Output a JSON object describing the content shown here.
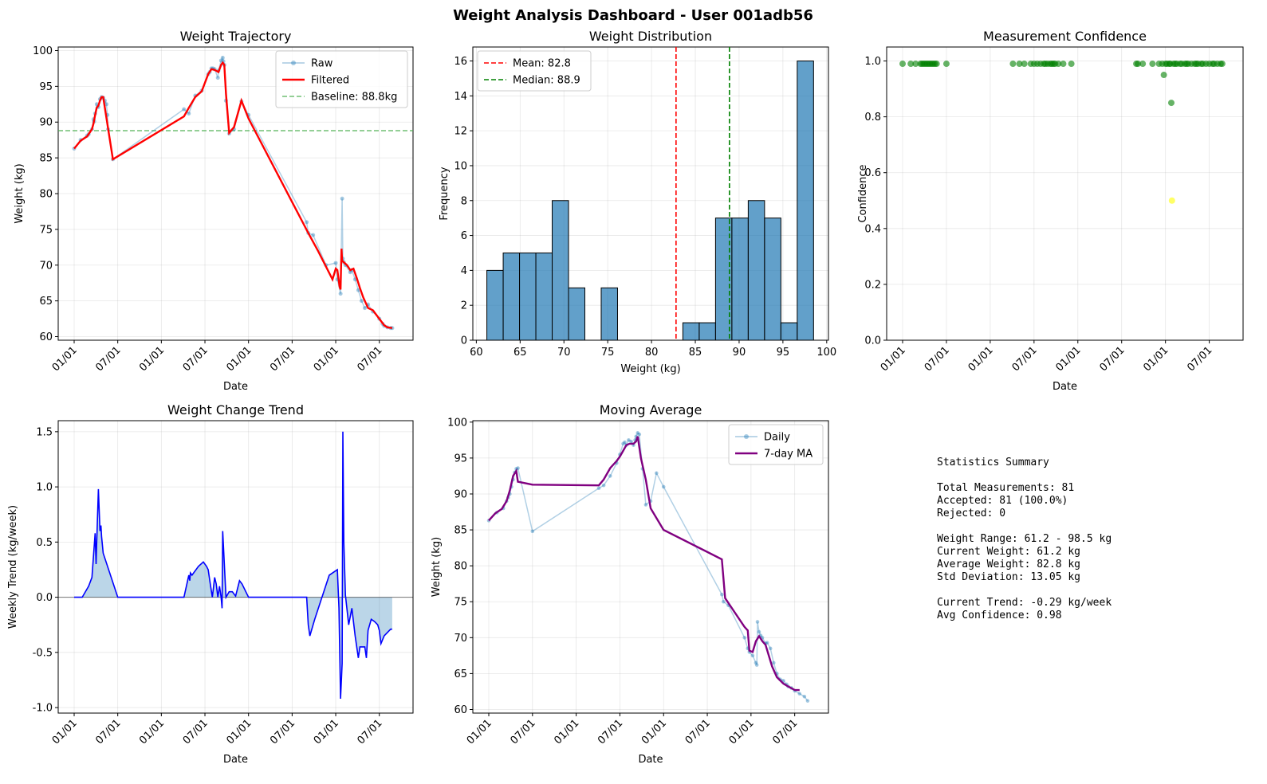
{
  "suptitle": "Weight Analysis Dashboard - User 001adb56",
  "colors": {
    "raw": "#1f77b4",
    "filtered": "#ff0000",
    "baseline": "#4caf50",
    "hist": "#1f77b4",
    "mean": "#ff0000",
    "median": "#008000",
    "conf_green": "#008000",
    "conf_yellow": "#ffff00",
    "trend": "#0000ff",
    "ma": "#800080"
  },
  "date_ticks": [
    "01/01",
    "07/01",
    "01/01",
    "07/01",
    "01/01",
    "07/01",
    "01/01",
    "07/01"
  ],
  "chart_data": [
    {
      "type": "line",
      "id": "trajectory",
      "title": "Weight Trajectory",
      "xlabel": "Date",
      "ylabel": "Weight (kg)",
      "xlim": [
        0,
        1000
      ],
      "ylim": [
        59.5,
        100.5
      ],
      "yticks": [
        60,
        65,
        70,
        75,
        80,
        85,
        90,
        95,
        100
      ],
      "legend": [
        "Raw",
        "Filtered",
        "Baseline: 88.8kg"
      ],
      "baseline": 88.8,
      "series": [
        {
          "name": "Raw",
          "x": [
            0,
            20,
            40,
            45,
            55,
            60,
            62,
            65,
            70,
            75,
            80,
            85,
            90,
            95,
            100,
            103,
            105,
            120,
            340,
            355,
            375,
            395,
            415,
            420,
            425,
            430,
            435,
            445,
            447,
            455,
            460,
            462,
            465,
            470,
            480,
            495,
            518,
            540,
            720,
            725,
            740,
            780,
            810,
            815,
            825,
            830,
            832,
            835,
            840,
            855,
            860,
            870,
            880,
            890,
            900,
            910,
            925,
            945,
            955,
            960,
            970,
            980,
            985
          ],
          "y": [
            86.3,
            87.5,
            88.1,
            88.3,
            89,
            90.4,
            90.1,
            91.2,
            92.5,
            92.1,
            93.2,
            93.5,
            93.4,
            93.0,
            92.5,
            91.0,
            89.0,
            84.8,
            91.8,
            91.2,
            93.7,
            94.4,
            96.7,
            97.0,
            97.5,
            97.5,
            97.4,
            96.2,
            97.2,
            98.6,
            99.0,
            98.5,
            98.0,
            93.0,
            88.4,
            89.0,
            92.9,
            91.0,
            76.0,
            74.5,
            74.2,
            70.0,
            70.3,
            68.0,
            66.0,
            79.3,
            70.9,
            70.4,
            70.0,
            69.0,
            69.3,
            68.0,
            66.5,
            65.0,
            64.0,
            64.5,
            63.5,
            62.5,
            61.8,
            61.5,
            61.3,
            61.2,
            61.2
          ]
        },
        {
          "name": "Filtered",
          "x": [
            0,
            20,
            40,
            55,
            60,
            65,
            70,
            75,
            80,
            85,
            90,
            120,
            340,
            355,
            375,
            395,
            415,
            425,
            435,
            447,
            455,
            460,
            465,
            470,
            480,
            495,
            518,
            540,
            725,
            755,
            800,
            810,
            815,
            822,
            825,
            828,
            830,
            835,
            845,
            855,
            865,
            875,
            885,
            895,
            910,
            925,
            945,
            960,
            970,
            985
          ],
          "y": [
            86.3,
            87.4,
            88.0,
            89.0,
            89.8,
            91.0,
            92.0,
            92.3,
            93.0,
            93.5,
            93.5,
            84.8,
            90.8,
            92.0,
            93.5,
            94.3,
            96.7,
            97.4,
            97.3,
            97.0,
            98.0,
            98.3,
            98.0,
            94.0,
            88.5,
            89.3,
            93.0,
            90.5,
            74.5,
            72.0,
            68.0,
            69.5,
            69.3,
            67.0,
            66.6,
            72.3,
            70.6,
            70.4,
            70.0,
            69.3,
            69.5,
            68.2,
            66.8,
            65.5,
            64.0,
            63.7,
            62.5,
            61.6,
            61.3,
            61.2
          ]
        }
      ]
    },
    {
      "type": "bar",
      "id": "distribution",
      "title": "Weight Distribution",
      "xlabel": "Weight (kg)",
      "ylabel": "Frequency",
      "xlim": [
        59.6,
        100.2
      ],
      "ylim": [
        0,
        16.8
      ],
      "xticks": [
        60,
        65,
        70,
        75,
        80,
        85,
        90,
        95,
        100
      ],
      "yticks": [
        0,
        2,
        4,
        6,
        8,
        10,
        12,
        14,
        16
      ],
      "legend": [
        "Mean: 82.8",
        "Median: 88.9"
      ],
      "mean": 82.8,
      "median": 88.9,
      "bin_start": 61.2,
      "bin_width": 1.865,
      "values": [
        4,
        5,
        5,
        5,
        8,
        3,
        0,
        3,
        0,
        0,
        0,
        0,
        1,
        1,
        7,
        7,
        8,
        7,
        1,
        16
      ]
    },
    {
      "type": "scatter",
      "id": "confidence",
      "title": "Measurement Confidence",
      "xlabel": "Date",
      "ylabel": "Confidence",
      "xlim": [
        0,
        1000
      ],
      "ylim": [
        0,
        1.05
      ],
      "yticks": [
        0.0,
        0.2,
        0.4,
        0.6,
        0.8,
        1.0
      ],
      "x": [
        0,
        25,
        40,
        55,
        60,
        65,
        70,
        75,
        80,
        85,
        90,
        95,
        100,
        105,
        135,
        340,
        360,
        375,
        395,
        405,
        415,
        425,
        435,
        440,
        447,
        455,
        460,
        465,
        470,
        480,
        495,
        520,
        720,
        725,
        740,
        770,
        790,
        800,
        805,
        810,
        815,
        822,
        825,
        828,
        830,
        835,
        840,
        845,
        855,
        860,
        870,
        875,
        880,
        890,
        900,
        905,
        910,
        920,
        925,
        935,
        945,
        955,
        960,
        970,
        980,
        985
      ],
      "y": [
        0.99,
        0.99,
        0.99,
        0.99,
        0.99,
        0.99,
        0.99,
        0.99,
        0.99,
        0.99,
        0.99,
        0.99,
        0.99,
        0.99,
        0.99,
        0.99,
        0.99,
        0.99,
        0.99,
        0.99,
        0.99,
        0.99,
        0.99,
        0.99,
        0.99,
        0.99,
        0.99,
        0.99,
        0.99,
        0.99,
        0.99,
        0.99,
        0.99,
        0.99,
        0.99,
        0.99,
        0.99,
        0.99,
        0.95,
        0.99,
        0.99,
        0.99,
        0.99,
        0.85,
        0.5,
        0.99,
        0.99,
        0.99,
        0.99,
        0.99,
        0.99,
        0.99,
        0.99,
        0.99,
        0.99,
        0.99,
        0.99,
        0.99,
        0.99,
        0.99,
        0.99,
        0.99,
        0.99,
        0.99,
        0.99,
        0.99
      ]
    },
    {
      "type": "area",
      "id": "trend",
      "title": "Weight Change Trend",
      "xlabel": "Date",
      "ylabel": "Weekly Trend (kg/week)",
      "xlim": [
        0,
        1000
      ],
      "ylim": [
        -1.05,
        1.6
      ],
      "yticks": [
        -1.0,
        -0.5,
        0.0,
        0.5,
        1.0,
        1.5
      ],
      "x": [
        0,
        25,
        45,
        55,
        65,
        68,
        70,
        75,
        78,
        80,
        83,
        85,
        90,
        135,
        340,
        355,
        358,
        360,
        365,
        385,
        400,
        410,
        415,
        420,
        428,
        435,
        440,
        445,
        450,
        455,
        458,
        460,
        470,
        480,
        490,
        500,
        512,
        520,
        540,
        560,
        720,
        725,
        730,
        745,
        790,
        815,
        820,
        825,
        830,
        832,
        835,
        840,
        850,
        860,
        870,
        880,
        885,
        890,
        900,
        905,
        910,
        920,
        930,
        940,
        945,
        950,
        960,
        970,
        980,
        985
      ],
      "y": [
        0,
        0,
        0.1,
        0.18,
        0.58,
        0.3,
        0.5,
        0.98,
        0.75,
        0.6,
        0.65,
        0.55,
        0.4,
        0,
        0,
        0.2,
        0.15,
        0.22,
        0.2,
        0.28,
        0.32,
        0.28,
        0.25,
        0.15,
        0,
        0.18,
        0.12,
        0,
        0.1,
        0,
        -0.1,
        0.6,
        0,
        0.05,
        0.05,
        0.01,
        0.15,
        0.12,
        0,
        0,
        0,
        -0.25,
        -0.35,
        -0.2,
        0.2,
        0.25,
        -0.1,
        -0.92,
        -0.6,
        1.5,
        0.5,
        0.02,
        -0.25,
        -0.1,
        -0.35,
        -0.55,
        -0.45,
        -0.45,
        -0.45,
        -0.55,
        -0.3,
        -0.2,
        -0.22,
        -0.25,
        -0.3,
        -0.42,
        -0.35,
        -0.32,
        -0.29,
        -0.29
      ]
    },
    {
      "type": "line",
      "id": "moving_average",
      "title": "Moving Average",
      "xlabel": "Date",
      "ylabel": "Weight (kg)",
      "xlim": [
        0,
        1000
      ],
      "ylim": [
        59.5,
        100.2
      ],
      "yticks": [
        60,
        65,
        70,
        75,
        80,
        85,
        90,
        95,
        100
      ],
      "legend": [
        "Daily",
        "7-day MA"
      ],
      "series": [
        {
          "name": "Daily",
          "x": [
            0,
            25,
            45,
            55,
            60,
            65,
            70,
            75,
            80,
            85,
            90,
            135,
            340,
            355,
            375,
            395,
            405,
            415,
            420,
            425,
            432,
            440,
            447,
            452,
            455,
            460,
            465,
            475,
            485,
            500,
            518,
            540,
            720,
            725,
            740,
            790,
            800,
            805,
            815,
            825,
            828,
            830,
            835,
            840,
            845,
            855,
            860,
            870,
            880,
            890,
            900,
            910,
            920,
            925,
            935,
            945,
            960,
            975,
            985
          ],
          "y": [
            86.3,
            87.4,
            88.0,
            89.0,
            89.5,
            90.0,
            91.0,
            92.0,
            93.0,
            93.5,
            93.6,
            84.8,
            90.8,
            91.2,
            92.5,
            94.3,
            95.5,
            97.0,
            97.2,
            96.8,
            97.5,
            97.3,
            96.8,
            97.5,
            98.0,
            98.5,
            98.3,
            93.5,
            88.5,
            89.0,
            92.9,
            91.0,
            76.0,
            75.0,
            74.5,
            70.0,
            68.5,
            68.0,
            67.5,
            66.5,
            66.2,
            72.2,
            70.8,
            70.3,
            70.0,
            69.2,
            69.3,
            68.5,
            66.5,
            65.0,
            64.2,
            64.0,
            63.5,
            63.2,
            63.0,
            62.6,
            62.2,
            61.8,
            61.2
          ]
        },
        {
          "name": "7-day MA",
          "x": [
            0,
            20,
            40,
            55,
            65,
            75,
            85,
            90,
            135,
            340,
            355,
            375,
            395,
            405,
            415,
            425,
            435,
            447,
            455,
            460,
            470,
            485,
            500,
            540,
            720,
            730,
            790,
            800,
            805,
            815,
            825,
            835,
            845,
            855,
            865,
            875,
            890,
            910,
            925,
            945,
            960
          ],
          "y": [
            86.3,
            87.3,
            87.9,
            89.0,
            90.5,
            92.5,
            93.2,
            91.7,
            91.3,
            91.2,
            92.0,
            93.6,
            94.6,
            95.2,
            96.0,
            96.8,
            97.0,
            97.0,
            97.3,
            98.0,
            95.0,
            92.0,
            88.0,
            85.0,
            80.9,
            75.5,
            71.5,
            71.0,
            68.2,
            68.0,
            69.5,
            70.2,
            69.5,
            69.0,
            67.5,
            66.0,
            64.5,
            63.6,
            63.2,
            62.7,
            62.7
          ]
        }
      ]
    }
  ],
  "stats": {
    "title": "Statistics Summary",
    "lines": [
      "Total Measurements: 81",
      "Accepted: 81 (100.0%)",
      "Rejected: 0",
      "Weight Range: 61.2 - 98.5 kg",
      "Current Weight: 61.2 kg",
      "Average Weight: 82.8 kg",
      "Std Deviation: 13.05 kg",
      "Current Trend: -0.29 kg/week",
      "Avg Confidence: 0.98"
    ]
  }
}
